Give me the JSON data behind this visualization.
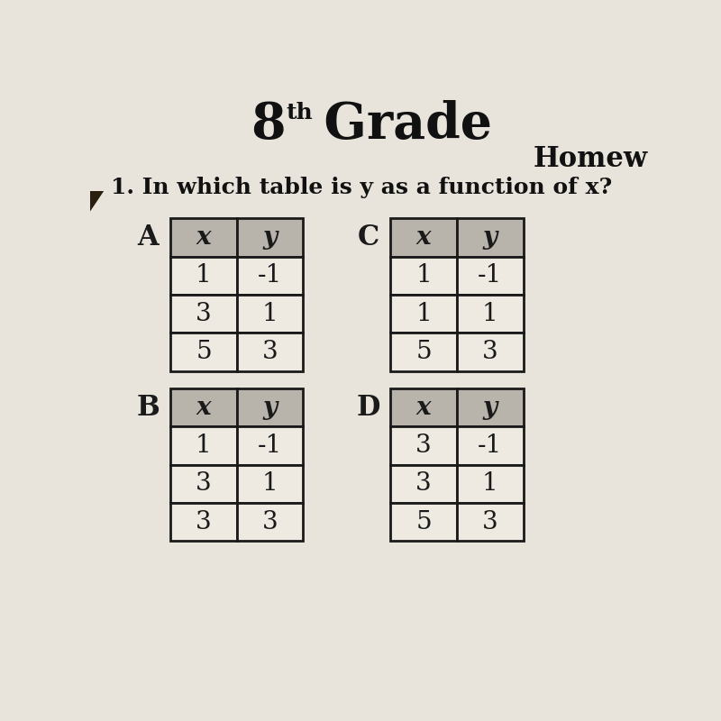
{
  "title_main": "8",
  "title_super": "th",
  "title_grade": " Grade",
  "homework_label": "Homew",
  "question": "1. In which table is y as a function of x?",
  "bg_dark": "#2a1e0f",
  "paper_color": "#e8e4dc",
  "tables": {
    "A": {
      "label": "A",
      "headers": [
        "x",
        "y"
      ],
      "rows": [
        [
          "1",
          "-1"
        ],
        [
          "3",
          "1"
        ],
        [
          "5",
          "3"
        ]
      ]
    },
    "B": {
      "label": "B",
      "headers": [
        "x",
        "y"
      ],
      "rows": [
        [
          "1",
          "-1"
        ],
        [
          "3",
          "1"
        ],
        [
          "3",
          "3"
        ]
      ]
    },
    "C": {
      "label": "C",
      "headers": [
        "x",
        "y"
      ],
      "rows": [
        [
          "1",
          "-1"
        ],
        [
          "1",
          "1"
        ],
        [
          "5",
          "3"
        ]
      ]
    },
    "D": {
      "label": "D",
      "headers": [
        "x",
        "y"
      ],
      "rows": [
        [
          "3",
          "-1"
        ],
        [
          "3",
          "1"
        ],
        [
          "5",
          "3"
        ]
      ]
    }
  },
  "header_bg": "#b8b4ac",
  "cell_bg": "#eeeae2",
  "border_color": "#1a1a1a",
  "text_color": "#111111",
  "font_size_table": 20,
  "font_size_label": 22,
  "font_size_question": 18,
  "font_size_title": 40,
  "font_size_super": 18
}
